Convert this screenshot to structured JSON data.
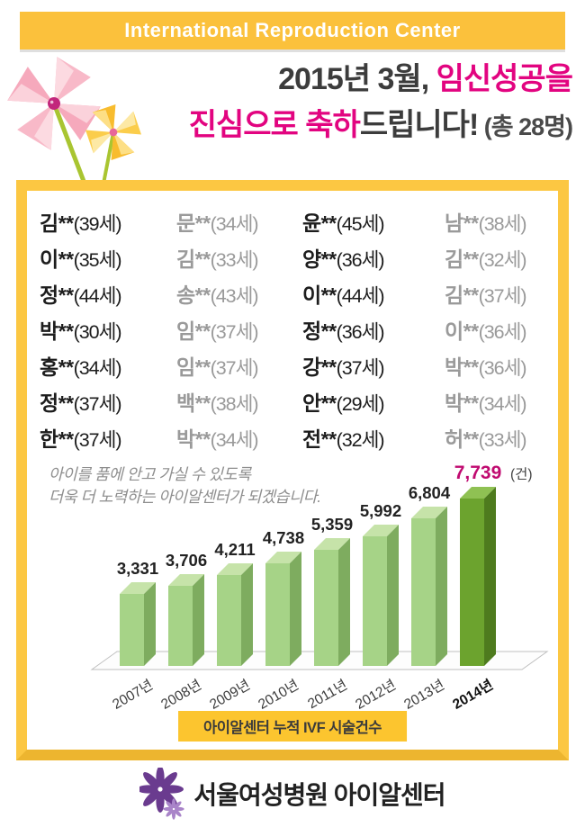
{
  "banner": {
    "segments": [
      {
        "t": "I",
        "bold": true
      },
      {
        "t": "nternational ",
        "bold": false
      },
      {
        "t": "R",
        "bold": true
      },
      {
        "t": "eproduction ",
        "bold": false
      },
      {
        "t": "C",
        "bold": true
      },
      {
        "t": "enter",
        "bold": false
      }
    ]
  },
  "headline": {
    "line1_dark": "2015년 3월, ",
    "line1_accent": "임신성공을",
    "line2_accent": "진심으로 축하",
    "line2_dark": "드립니다!",
    "line2_suffix": " (총 28명)"
  },
  "names": [
    {
      "n": "김**",
      "a": "(39세)"
    },
    {
      "n": "문**",
      "a": "(34세)"
    },
    {
      "n": "윤**",
      "a": "(45세)"
    },
    {
      "n": "남**",
      "a": "(38세)"
    },
    {
      "n": "이**",
      "a": "(35세)"
    },
    {
      "n": "김**",
      "a": "(33세)"
    },
    {
      "n": "양**",
      "a": "(36세)"
    },
    {
      "n": "김**",
      "a": "(32세)"
    },
    {
      "n": "정**",
      "a": "(44세)"
    },
    {
      "n": "송**",
      "a": "(43세)"
    },
    {
      "n": "이**",
      "a": "(44세)"
    },
    {
      "n": "김**",
      "a": "(37세)"
    },
    {
      "n": "박**",
      "a": "(30세)"
    },
    {
      "n": "임**",
      "a": "(37세)"
    },
    {
      "n": "정**",
      "a": "(36세)"
    },
    {
      "n": "이**",
      "a": "(36세)"
    },
    {
      "n": "홍**",
      "a": "(34세)"
    },
    {
      "n": "임**",
      "a": "(37세)"
    },
    {
      "n": "강**",
      "a": "(37세)"
    },
    {
      "n": "박**",
      "a": "(36세)"
    },
    {
      "n": "정**",
      "a": "(37세)"
    },
    {
      "n": "백**",
      "a": "(38세)"
    },
    {
      "n": "안**",
      "a": "(29세)"
    },
    {
      "n": "박**",
      "a": "(34세)"
    },
    {
      "n": "한**",
      "a": "(37세)"
    },
    {
      "n": "박**",
      "a": "(34세)"
    },
    {
      "n": "전**",
      "a": "(32세)"
    },
    {
      "n": "허**",
      "a": "(33세)"
    }
  ],
  "message": {
    "line1": "아이를 품에 안고 가실 수 있도록",
    "line2": "더욱 더 노력하는 아이알센터가 되겠습니다."
  },
  "chart_data": {
    "type": "bar",
    "title": "아이알센터 누적 IVF 시술건수",
    "categories": [
      "2007년",
      "2008년",
      "2009년",
      "2010년",
      "2011년",
      "2012년",
      "2013년",
      "2014년"
    ],
    "values": [
      3331,
      3706,
      4211,
      4738,
      5359,
      5992,
      6804,
      7739
    ],
    "value_labels": [
      "3,331",
      "3,706",
      "4,211",
      "4,738",
      "5,359",
      "5,992",
      "6,804",
      "7,739"
    ],
    "unit_label": "(건)",
    "highlight_index": 7,
    "ylim": [
      0,
      7739
    ],
    "grid": false,
    "legend": false,
    "style_3d": true,
    "bar_front": "#A6D387",
    "bar_side": "#7EAC5F",
    "bar_top": "#C6E3A9",
    "highlight_front": "#6CA32E",
    "highlight_side": "#4E7B1E",
    "highlight_top": "#8FC153",
    "value_color": "#222222",
    "highlight_value_color": "#C00A70",
    "axis_label_color": "#3c3c3c"
  },
  "footer": {
    "hospital": "서울여성병원 아이알센터"
  },
  "colors": {
    "banner_bg": "#FBC13C",
    "card_border": "#FCC742",
    "accent_magenta": "#E20480",
    "title_box_bg": "#FCC52F"
  }
}
